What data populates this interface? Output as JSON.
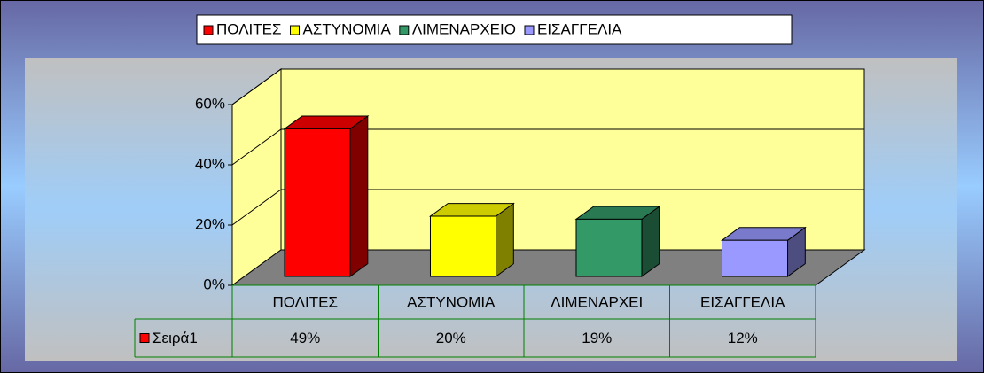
{
  "chart_data": {
    "type": "bar3d",
    "categories": [
      "ΠΟΛΙΤΕΣ",
      "ΑΣΤΥΝΟΜΙΑ",
      "ΛΙΜΕΝΑΡΧΕΙ",
      "ΕΙΣΑΓΓΕΛΙΑ"
    ],
    "legend": [
      "ΠΟΛΙΤΕΣ",
      "ΑΣΤΥΝΟΜΙΑ",
      "ΛΙΜΕΝΑΡΧΕΙΟ",
      "ΕΙΣΑΓΓΕΛΙΑ"
    ],
    "colors": [
      "#ff0000",
      "#ffff00",
      "#339966",
      "#9999ff"
    ],
    "series": [
      {
        "name": "Σειρά1",
        "color": "#ff0000",
        "values": [
          49,
          20,
          19,
          12
        ],
        "value_labels": [
          "49%",
          "20%",
          "19%",
          "12%"
        ]
      }
    ],
    "ylim": [
      0,
      60
    ],
    "yticks": [
      {
        "value": 0,
        "label": "0%"
      },
      {
        "value": 20,
        "label": "20%"
      },
      {
        "value": 40,
        "label": "40%"
      },
      {
        "value": 60,
        "label": "60%"
      }
    ],
    "grid": true
  }
}
